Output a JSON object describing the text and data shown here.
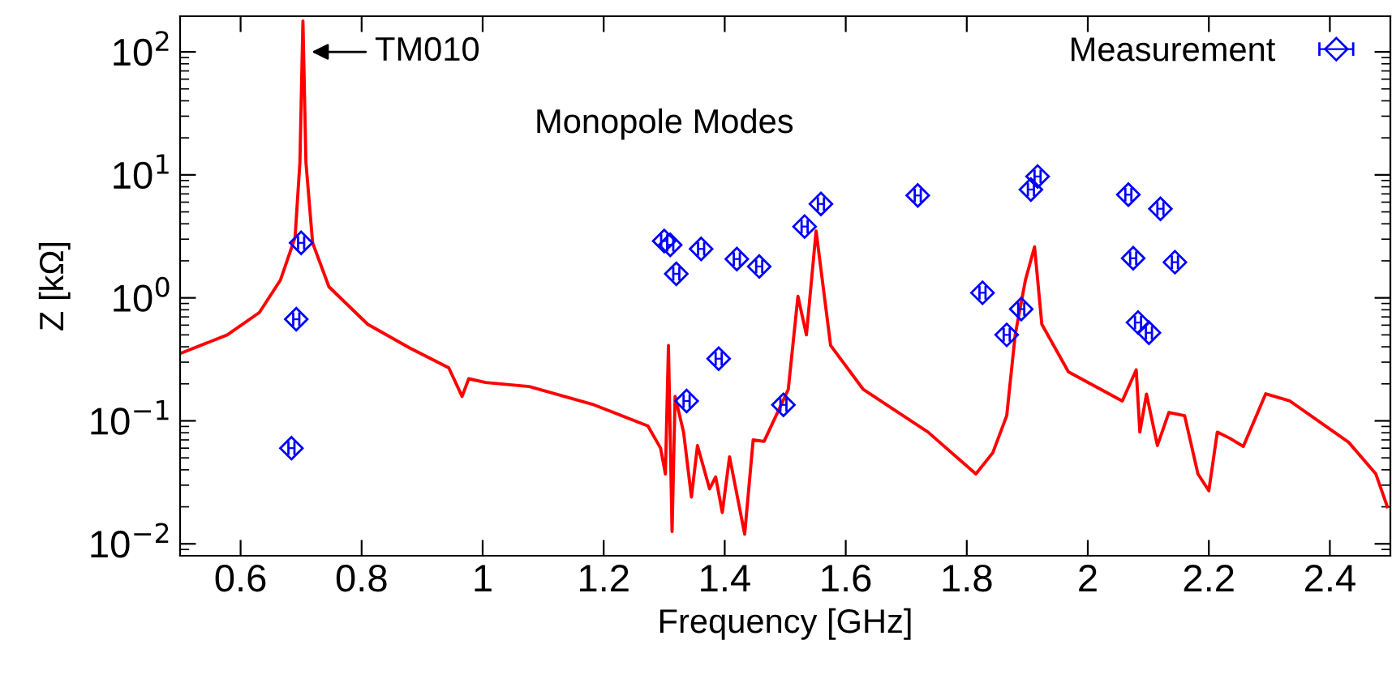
{
  "chart_data": {
    "type": "line",
    "xlabel": "Frequency [GHz]",
    "ylabel": "Z [kΩ]",
    "log": "y",
    "xlim": [
      0.5,
      2.5
    ],
    "ylim": [
      0.008,
      195
    ],
    "xticks": [
      0.6,
      0.8,
      1,
      1.2,
      1.4,
      1.6,
      1.8,
      2,
      2.2,
      2.4
    ],
    "yticks": [
      {
        "value": 0.01,
        "label": "10$^{−2}$"
      },
      {
        "value": 0.1,
        "label": "10$^{−1}$"
      },
      {
        "value": 1,
        "label": "10$^{0}$"
      },
      {
        "value": 10,
        "label": "10$^{1}$"
      },
      {
        "value": 100,
        "label": "10$^{2}$"
      }
    ],
    "grid": false,
    "legend": "top right",
    "annotations": [
      {
        "text": "TM010",
        "x": 0.71,
        "y": 100
      },
      "Monopole Modes"
    ],
    "series": [
      {
        "color": "#ff0000",
        "line_style": "solid",
        "marker": "none",
        "x": [
          0.503,
          0.578,
          0.631,
          0.666,
          0.69,
          0.698,
          0.703,
          0.708,
          0.719,
          0.746,
          0.81,
          0.88,
          0.944,
          0.966,
          0.977,
          1.005,
          1.077,
          1.184,
          1.273,
          1.294,
          1.302,
          1.307,
          1.313,
          1.318,
          1.332,
          1.345,
          1.355,
          1.375,
          1.385,
          1.396,
          1.408,
          1.433,
          1.447,
          1.465,
          1.505,
          1.521,
          1.535,
          1.551,
          1.575,
          1.629,
          1.736,
          1.815,
          1.843,
          1.866,
          1.88,
          1.897,
          1.912,
          1.924,
          1.968,
          2.057,
          2.08,
          2.086,
          2.097,
          2.115,
          2.134,
          2.16,
          2.182,
          2.2,
          2.214,
          2.235,
          2.257,
          2.294,
          2.334,
          2.431,
          2.476,
          2.495
        ],
        "values": [
          0.357,
          0.5,
          0.76,
          1.4,
          3.1,
          12.6,
          178,
          12.6,
          2.8,
          1.23,
          0.61,
          0.39,
          0.27,
          0.158,
          0.22,
          0.205,
          0.19,
          0.135,
          0.091,
          0.06,
          0.037,
          0.41,
          0.0126,
          0.158,
          0.081,
          0.024,
          0.063,
          0.028,
          0.035,
          0.018,
          0.051,
          0.012,
          0.07,
          0.068,
          0.18,
          1.03,
          0.5,
          3.5,
          0.41,
          0.18,
          0.081,
          0.037,
          0.055,
          0.11,
          0.5,
          1.4,
          2.6,
          0.61,
          0.25,
          0.145,
          0.26,
          0.081,
          0.165,
          0.063,
          0.117,
          0.11,
          0.037,
          0.027,
          0.081,
          0.072,
          0.062,
          0.166,
          0.145,
          0.067,
          0.037,
          0.02
        ]
      },
      {
        "type": "scatter",
        "name": "Measurement",
        "color": "#0000ff",
        "marker": "diamond",
        "x": [
          0.7,
          0.692,
          0.684,
          1.3,
          1.31,
          1.32,
          1.337,
          1.361,
          1.42,
          1.457,
          1.39,
          1.497,
          1.532,
          1.559,
          1.719,
          1.826,
          1.89,
          1.866,
          1.906,
          1.917,
          2.067,
          2.12,
          2.075,
          2.144,
          2.083,
          2.101
        ],
        "values": [
          2.8,
          0.67,
          0.06,
          2.9,
          2.7,
          1.57,
          0.145,
          2.5,
          2.07,
          1.8,
          0.32,
          0.135,
          3.8,
          5.8,
          6.8,
          1.1,
          0.81,
          0.5,
          7.6,
          9.7,
          6.9,
          5.3,
          2.1,
          1.95,
          0.63,
          0.52
        ],
        "xerrors": [
          0.005,
          0.005,
          0.005,
          0.005,
          0.005,
          0.005,
          0.005,
          0.005,
          0.005,
          0.005,
          0.005,
          0.005,
          0.005,
          0.005,
          0.005,
          0.005,
          0.005,
          0.005,
          0.005,
          0.005,
          0.005,
          0.005,
          0.005,
          0.005,
          0.005,
          0.005
        ]
      }
    ]
  }
}
